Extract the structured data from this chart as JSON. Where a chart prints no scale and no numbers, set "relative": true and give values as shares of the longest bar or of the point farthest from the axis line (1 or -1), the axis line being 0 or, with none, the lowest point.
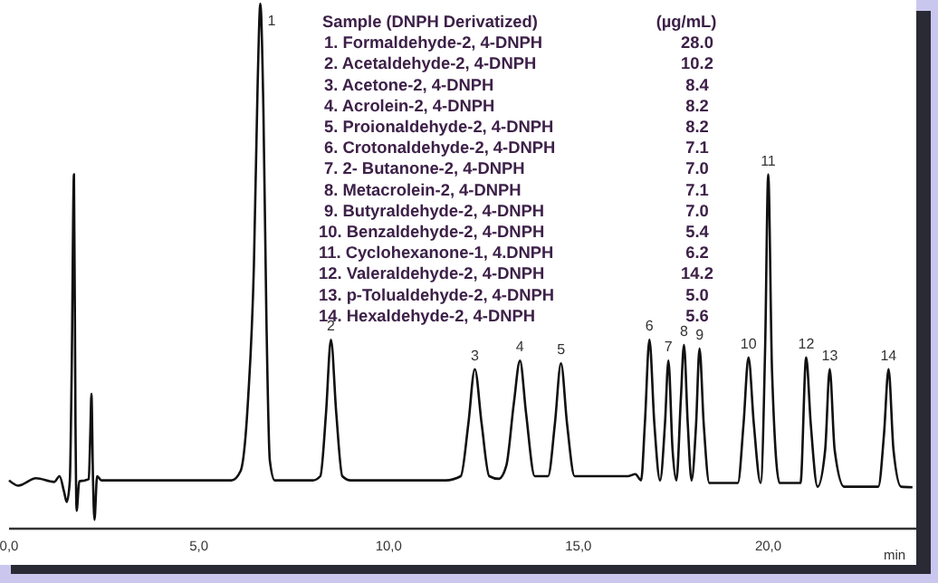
{
  "chart_data": {
    "type": "line",
    "relative": true,
    "xlabel": "min",
    "xlim": [
      0,
      23.9
    ],
    "xticks": [
      {
        "value": 0,
        "label": "0,0"
      },
      {
        "value": 5,
        "label": "5,0"
      },
      {
        "value": 10,
        "label": "10,0"
      },
      {
        "value": 15,
        "label": "15,0"
      },
      {
        "value": 20,
        "label": "20,0"
      }
    ],
    "grid": false,
    "marker": "none",
    "line_style": "solid",
    "series": [
      {
        "color": "#111111",
        "x": [
          0,
          0.24,
          0.71,
          1.19,
          1.33,
          1.45,
          1.52,
          1.6,
          1.65,
          1.71,
          1.75,
          1.78,
          1.85,
          2.0,
          2.1,
          2.14,
          2.17,
          2.21,
          2.25,
          2.32,
          2.43,
          3.5,
          5.0,
          5.86,
          6.1,
          6.3,
          6.45,
          6.55,
          6.62,
          6.7,
          6.78,
          6.87,
          7.0,
          8.0,
          8.2,
          8.35,
          8.48,
          8.62,
          8.78,
          9.0,
          11.5,
          11.9,
          12.1,
          12.27,
          12.45,
          12.65,
          12.9,
          13.1,
          13.3,
          13.46,
          13.62,
          13.85,
          14.2,
          14.38,
          14.54,
          14.7,
          14.9,
          16.3,
          16.5,
          16.65,
          16.75,
          16.87,
          17.0,
          17.15,
          17.28,
          17.37,
          17.48,
          17.58,
          17.7,
          17.78,
          17.88,
          17.98,
          18.1,
          18.19,
          18.3,
          18.45,
          19.2,
          19.35,
          19.48,
          19.62,
          19.8,
          19.92,
          20.0,
          20.1,
          20.3,
          20.85,
          21.0,
          21.12,
          21.3,
          21.5,
          21.62,
          21.75,
          22.0,
          22.9,
          23.05,
          23.17,
          23.3,
          23.5,
          23.8
        ],
        "values": [
          0.092,
          0.082,
          0.096,
          0.089,
          0.1,
          0.07,
          0.051,
          0.09,
          0.3,
          0.675,
          0.2,
          0.034,
          0.09,
          0.092,
          0.095,
          0.18,
          0.257,
          0.1,
          0.017,
          0.1,
          0.092,
          0.092,
          0.092,
          0.092,
          0.11,
          0.25,
          0.5,
          0.85,
          1.0,
          0.8,
          0.4,
          0.13,
          0.092,
          0.092,
          0.1,
          0.22,
          0.36,
          0.22,
          0.1,
          0.092,
          0.092,
          0.1,
          0.2,
          0.304,
          0.2,
          0.1,
          0.095,
          0.12,
          0.24,
          0.32,
          0.22,
          0.1,
          0.1,
          0.2,
          0.315,
          0.2,
          0.1,
          0.1,
          0.104,
          0.092,
          0.2,
          0.36,
          0.2,
          0.092,
          0.2,
          0.32,
          0.15,
          0.092,
          0.25,
          0.35,
          0.2,
          0.092,
          0.2,
          0.343,
          0.2,
          0.087,
          0.087,
          0.2,
          0.326,
          0.2,
          0.087,
          0.35,
          0.675,
          0.3,
          0.087,
          0.087,
          0.326,
          0.2,
          0.08,
          0.15,
          0.304,
          0.15,
          0.08,
          0.08,
          0.18,
          0.304,
          0.15,
          0.08,
          0.079
        ]
      }
    ],
    "annotations": [
      {
        "text": "1",
        "x": 6.62,
        "y": 1.0
      },
      {
        "text": "2",
        "x": 8.48,
        "y": 0.36
      },
      {
        "text": "3",
        "x": 12.27,
        "y": 0.304
      },
      {
        "text": "4",
        "x": 13.46,
        "y": 0.32
      },
      {
        "text": "5",
        "x": 14.54,
        "y": 0.315
      },
      {
        "text": "6",
        "x": 16.87,
        "y": 0.36
      },
      {
        "text": "7",
        "x": 17.37,
        "y": 0.32
      },
      {
        "text": "8",
        "x": 17.78,
        "y": 0.35
      },
      {
        "text": "9",
        "x": 18.19,
        "y": 0.343
      },
      {
        "text": "10",
        "x": 19.48,
        "y": 0.326
      },
      {
        "text": "11",
        "x": 20.0,
        "y": 0.675
      },
      {
        "text": "12",
        "x": 21.0,
        "y": 0.326
      },
      {
        "text": "13",
        "x": 21.62,
        "y": 0.304
      },
      {
        "text": "14",
        "x": 23.17,
        "y": 0.304
      },
      "Sample (DNPH Derivatized)",
      "(µg/mL)",
      "1. Formaldehyde-2, 4-DNPH",
      "28.0",
      "2. Acetaldehyde-2, 4-DNPH",
      "10.2",
      "3. Acetone-2, 4-DNPH",
      "8.4",
      "4. Acrolein-2, 4-DNPH",
      "8.2",
      "5. Proionaldehyde-2, 4-DNPH",
      "8.2",
      "6. Crotonaldehyde-2, 4-DNPH",
      "7.1",
      "7. 2- Butanone-2, 4-DNPH",
      "7.0",
      "8. Metacrolein-2, 4-DNPH",
      "7.1",
      "9. Butyraldehyde-2, 4-DNPH",
      "7.0",
      "10. Benzaldehyde-2, 4-DNPH",
      "5.4",
      "11. Cyclohexanone-1, 4.DNPH",
      "6.2",
      "12. Valeraldehyde-2, 4-DNPH",
      "14.2",
      "13. p-Tolualdehyde-2, 4-DNPH",
      "5.0",
      "14. Hexaldehyde-2, 4-DNPH",
      "5.6"
    ]
  }
}
